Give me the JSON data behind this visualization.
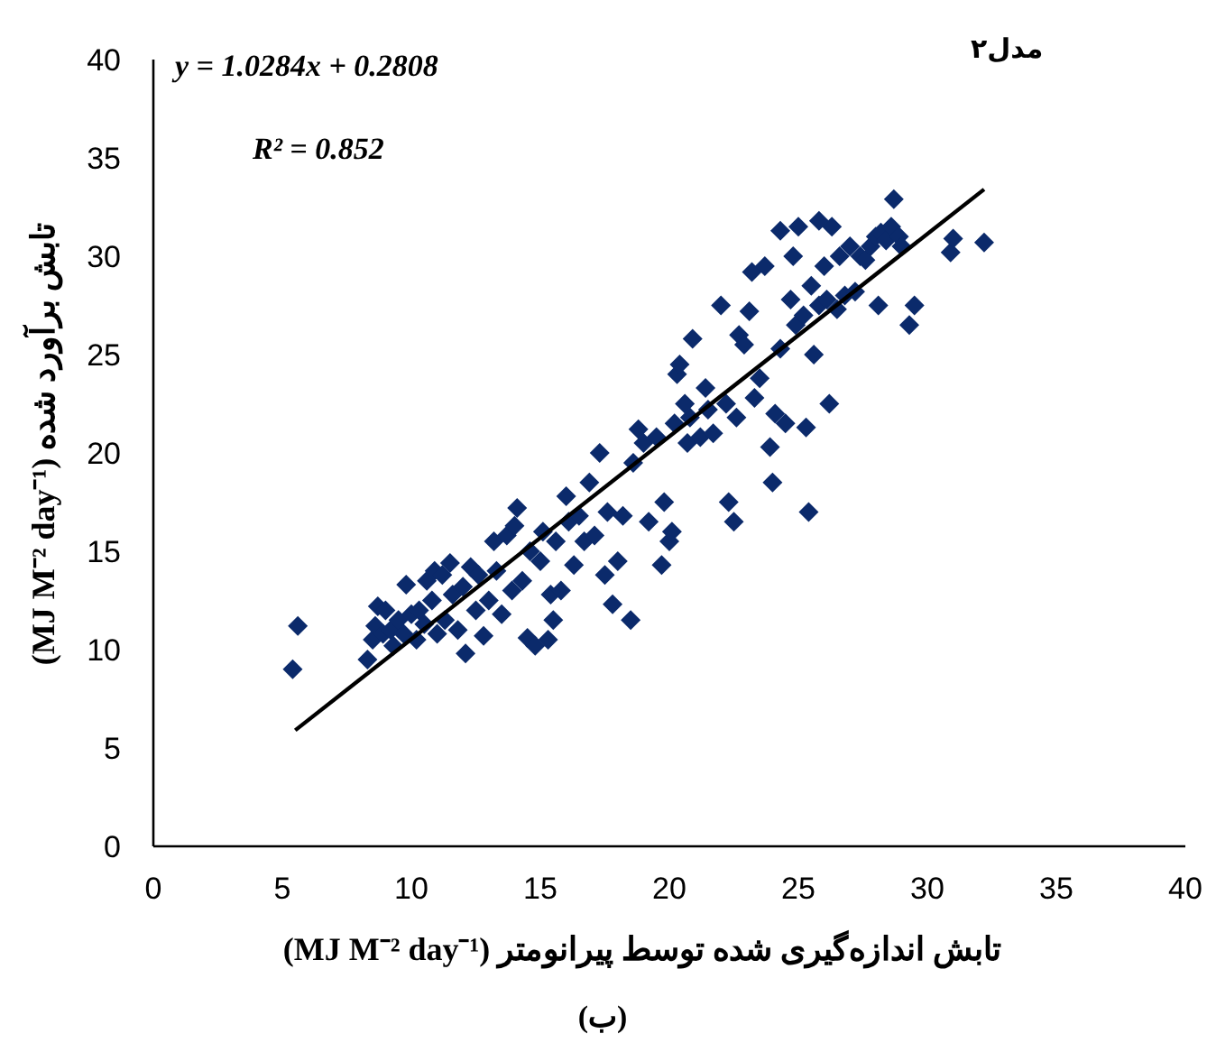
{
  "chart_data": {
    "type": "scatter",
    "title": "مدل۲",
    "xlabel": "تابش اندازه‌گیری شده توسط پیرانومتر (MJ M⁻² day⁻¹)",
    "ylabel": "تابش برآورد شده (MJ M⁻² day⁻¹)",
    "annotations": [
      "y = 1.0284x + 0.2808",
      "R² = 0.852",
      "(ب)"
    ],
    "xlim": [
      0,
      40
    ],
    "ylim": [
      0,
      40
    ],
    "xticks": [
      0,
      5,
      10,
      15,
      20,
      25,
      30,
      35,
      40
    ],
    "yticks": [
      0,
      5,
      10,
      15,
      20,
      25,
      30,
      35,
      40
    ],
    "series": [
      {
        "type": "scatter",
        "color": "#0b2a6b",
        "marker": "diamond",
        "x": [
          5.6,
          5.4,
          8.3,
          8.5,
          8.6,
          8.7,
          8.9,
          9.0,
          9.2,
          9.3,
          9.5,
          9.7,
          9.8,
          10.0,
          10.2,
          10.3,
          10.5,
          10.6,
          10.8,
          10.9,
          11.0,
          11.2,
          11.3,
          11.5,
          11.6,
          11.8,
          12.0,
          12.1,
          12.3,
          12.5,
          12.6,
          12.8,
          13.0,
          13.2,
          13.3,
          13.5,
          13.7,
          13.9,
          14.0,
          14.1,
          14.3,
          14.5,
          14.6,
          14.8,
          15.0,
          15.1,
          15.3,
          15.4,
          15.5,
          15.6,
          15.8,
          16.0,
          16.1,
          16.3,
          16.5,
          16.7,
          16.9,
          17.1,
          17.3,
          17.5,
          17.6,
          17.8,
          18.0,
          18.2,
          18.5,
          18.6,
          18.8,
          19.0,
          19.2,
          19.5,
          19.7,
          19.8,
          20.0,
          20.1,
          20.2,
          20.3,
          20.4,
          20.6,
          20.7,
          20.8,
          20.9,
          21.2,
          21.4,
          21.5,
          21.7,
          22.0,
          22.2,
          22.3,
          22.5,
          22.6,
          22.7,
          22.9,
          23.1,
          23.2,
          23.3,
          23.5,
          23.7,
          23.9,
          24.0,
          24.1,
          24.3,
          24.5,
          24.7,
          24.8,
          24.9,
          25.0,
          25.2,
          25.3,
          25.4,
          25.5,
          25.6,
          25.8,
          26.0,
          26.1,
          26.3,
          26.5,
          26.6,
          26.8,
          27.0,
          27.2,
          27.4,
          27.6,
          27.8,
          28.0,
          28.1,
          28.2,
          28.4,
          28.6,
          28.7,
          28.9,
          29.0,
          29.3,
          29.5,
          30.9,
          31.0,
          32.2,
          24.3,
          25.8,
          26.2
        ],
        "values": [
          11.2,
          9.0,
          9.5,
          10.5,
          11.2,
          12.2,
          10.8,
          12.0,
          11.0,
          10.2,
          11.5,
          10.8,
          13.3,
          11.8,
          10.5,
          12.0,
          11.3,
          13.5,
          12.5,
          14.0,
          10.8,
          13.8,
          11.5,
          14.4,
          12.8,
          11.0,
          13.2,
          9.8,
          14.2,
          12.0,
          13.8,
          10.7,
          12.5,
          15.5,
          14.0,
          11.8,
          15.8,
          13.0,
          16.3,
          17.2,
          13.5,
          10.6,
          15.0,
          10.2,
          14.5,
          16.0,
          10.5,
          12.8,
          11.5,
          15.5,
          13.0,
          17.8,
          16.5,
          14.3,
          16.8,
          15.5,
          18.5,
          15.8,
          20.0,
          13.8,
          17.0,
          12.3,
          14.5,
          16.8,
          11.5,
          19.5,
          21.2,
          20.5,
          16.5,
          20.8,
          14.3,
          17.5,
          15.5,
          16.0,
          21.5,
          24.0,
          24.5,
          22.5,
          20.5,
          21.8,
          25.8,
          20.8,
          23.3,
          22.2,
          21.0,
          27.5,
          22.5,
          17.5,
          16.5,
          21.8,
          26.0,
          25.5,
          27.2,
          29.2,
          22.8,
          23.8,
          29.5,
          20.3,
          18.5,
          22.0,
          25.3,
          21.5,
          27.8,
          30.0,
          26.5,
          31.5,
          27.0,
          21.3,
          17.0,
          28.5,
          25.0,
          27.5,
          29.5,
          27.8,
          31.5,
          27.3,
          30.0,
          28.0,
          30.5,
          28.2,
          30.0,
          29.8,
          30.5,
          31.0,
          27.5,
          31.2,
          30.8,
          31.5,
          32.9,
          31.0,
          30.5,
          26.5,
          27.5,
          30.2,
          30.9,
          30.7,
          31.3,
          31.8,
          22.5
        ]
      },
      {
        "type": "line",
        "color": "#000000",
        "x": [
          5.5,
          32.2
        ],
        "values": [
          5.9,
          33.4
        ]
      }
    ]
  }
}
